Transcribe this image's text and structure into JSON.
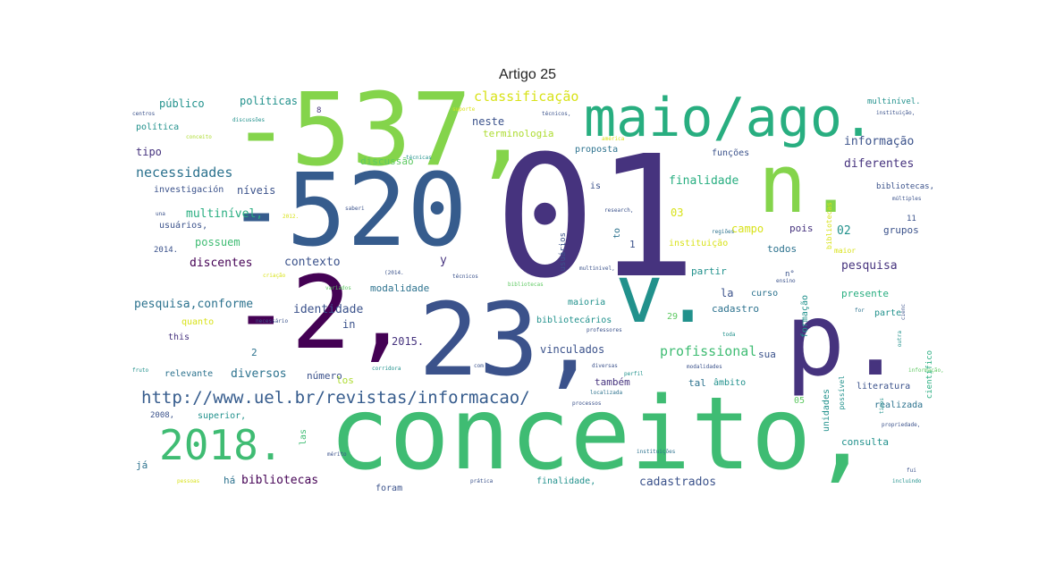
{
  "title": "Artigo 25",
  "palette": [
    "#440154",
    "#46337e",
    "#3b528b",
    "#365c8d",
    "#2c728e",
    "#21918c",
    "#1f9e89",
    "#28ae80",
    "#3fbc73",
    "#5ec962",
    "#84d44b",
    "#addc30",
    "#d8e219",
    "#fde725"
  ],
  "words": [
    {
      "text": "01",
      "color": "#46337e"
    },
    {
      "text": "conceito,",
      "color": "#3fbc73"
    },
    {
      "text": "-537,",
      "color": "#84d44b"
    },
    {
      "text": "-520",
      "color": "#365c8d"
    },
    {
      "text": "23,",
      "color": "#3b528b"
    },
    {
      "text": "maio/ago.",
      "color": "#28ae80"
    },
    {
      "text": "-2,",
      "color": "#440154"
    },
    {
      "text": "n.",
      "color": "#84d44b"
    },
    {
      "text": "v.",
      "color": "#21918c"
    },
    {
      "text": "p.",
      "color": "#46337e"
    },
    {
      "text": "2018.",
      "color": "#3fbc73"
    },
    {
      "text": "http://www.uel.br/revistas/informacao/",
      "color": "#365c8d"
    },
    {
      "text": "classificação",
      "color": "#d8e219"
    },
    {
      "text": "profissional",
      "color": "#3fbc73"
    },
    {
      "text": "necessidades",
      "color": "#2c728e"
    },
    {
      "text": "informação",
      "color": "#3b528b"
    },
    {
      "text": "diferentes",
      "color": "#46337e"
    },
    {
      "text": "finalidade",
      "color": "#28ae80"
    },
    {
      "text": "multinível,",
      "color": "#28ae80"
    },
    {
      "text": "pesquisa,conforme",
      "color": "#2c728e"
    },
    {
      "text": "identidade",
      "color": "#3b528b"
    },
    {
      "text": "discentes",
      "color": "#440154"
    },
    {
      "text": "diversos",
      "color": "#2c728e"
    },
    {
      "text": "bibliotecas",
      "color": "#440154"
    },
    {
      "text": "cadastrados",
      "color": "#3b528b"
    },
    {
      "text": "pesquisa",
      "color": "#46337e"
    },
    {
      "text": "contexto",
      "color": "#3b528b"
    },
    {
      "text": "modalidade",
      "color": "#2c728e"
    },
    {
      "text": "vinculados",
      "color": "#3b528b"
    },
    {
      "text": "políticas",
      "color": "#21918c"
    },
    {
      "text": "público",
      "color": "#21918c"
    },
    {
      "text": "neste",
      "color": "#3b528b"
    },
    {
      "text": "tipo",
      "color": "#46337e"
    },
    {
      "text": "níveis",
      "color": "#3b528b"
    },
    {
      "text": "possuem",
      "color": "#3fbc73"
    },
    {
      "text": "2015.",
      "color": "#46337e"
    },
    {
      "text": "consulta",
      "color": "#21918c"
    },
    {
      "text": "terminologia",
      "color": "#addc30"
    },
    {
      "text": "discussão",
      "color": "#5ec962"
    },
    {
      "text": "campo",
      "color": "#d8e219"
    },
    {
      "text": "02",
      "color": "#21918c"
    },
    {
      "text": "grupos",
      "color": "#3b528b"
    },
    {
      "text": "pois",
      "color": "#46337e"
    },
    {
      "text": "todos",
      "color": "#2c728e"
    },
    {
      "text": "partir",
      "color": "#21918c"
    },
    {
      "text": "presente",
      "color": "#28ae80"
    },
    {
      "text": "parte",
      "color": "#21918c"
    },
    {
      "text": "literatura",
      "color": "#3b528b"
    },
    {
      "text": "realizada",
      "color": "#2c728e"
    },
    {
      "text": "relevante",
      "color": "#2c728e"
    },
    {
      "text": "número",
      "color": "#3b528b"
    },
    {
      "text": "também",
      "color": "#46337e"
    },
    {
      "text": "tal",
      "color": "#2c728e"
    },
    {
      "text": "âmbito",
      "color": "#21918c"
    },
    {
      "text": "maioria",
      "color": "#21918c"
    },
    {
      "text": "cadastro",
      "color": "#2c728e"
    },
    {
      "text": "sua",
      "color": "#3b528b"
    },
    {
      "text": "la",
      "color": "#3b528b"
    },
    {
      "text": "in",
      "color": "#3b528b"
    },
    {
      "text": "this",
      "color": "#46337e"
    },
    {
      "text": "los",
      "color": "#addc30"
    },
    {
      "text": "há",
      "color": "#2c728e"
    },
    {
      "text": "já",
      "color": "#2c728e"
    },
    {
      "text": "foram",
      "color": "#3b528b"
    },
    {
      "text": "y",
      "color": "#46337e"
    },
    {
      "text": "quanto",
      "color": "#d8e219"
    },
    {
      "text": "proposta",
      "color": "#2c728e"
    },
    {
      "text": "funções",
      "color": "#3b528b"
    },
    {
      "text": "curso",
      "color": "#2c728e"
    },
    {
      "text": "formação",
      "color": "#21918c"
    },
    {
      "text": "unidades",
      "color": "#21918c"
    },
    {
      "text": "científico",
      "color": "#28ae80"
    },
    {
      "text": "bibliotecas,",
      "color": "#3b528b"
    },
    {
      "text": "bibliotecários",
      "color": "#21918c"
    },
    {
      "text": "instituição",
      "color": "#d8e219"
    },
    {
      "text": "investigación",
      "color": "#3b528b"
    },
    {
      "text": "usuários,",
      "color": "#3b528b"
    },
    {
      "text": "usuários",
      "color": "#3b528b"
    },
    {
      "text": "política",
      "color": "#21918c"
    },
    {
      "text": "multinível.",
      "color": "#21918c"
    },
    {
      "text": "finalidade,",
      "color": "#21918c"
    },
    {
      "text": "superior,",
      "color": "#21918c"
    },
    {
      "text": "2014.",
      "color": "#3b528b"
    },
    {
      "text": "2008,",
      "color": "#3b528b"
    },
    {
      "text": "03",
      "color": "#d8e219"
    },
    {
      "text": "05",
      "color": "#5ec962"
    },
    {
      "text": "29",
      "color": "#5ec962"
    },
    {
      "text": "las",
      "color": "#3fbc73"
    },
    {
      "text": "possível",
      "color": "#21918c"
    },
    {
      "text": "maior",
      "color": "#d8e219"
    },
    {
      "text": "bibliotecas",
      "color": "#d8e219"
    },
    {
      "text": "n°",
      "color": "#3b528b"
    },
    {
      "text": "to",
      "color": "#2c728e"
    },
    {
      "text": "is",
      "color": "#3b528b"
    },
    {
      "text": "2",
      "color": "#2c728e"
    },
    {
      "text": "1",
      "color": "#3b528b"
    },
    {
      "text": "11",
      "color": "#3b528b"
    },
    {
      "text": "8",
      "color": "#46337e"
    },
    {
      "text": "centros",
      "color": "#3b528b"
    },
    {
      "text": "discussões",
      "color": "#21918c"
    },
    {
      "text": "conceito",
      "color": "#addc30"
    },
    {
      "text": "suporte",
      "color": "#d8e219"
    },
    {
      "text": "técnicos,",
      "color": "#3b528b"
    },
    {
      "text": "instituição,",
      "color": "#3b528b"
    },
    {
      "text": "américa",
      "color": "#d8e219"
    },
    {
      "text": "técnicas",
      "color": "#21918c"
    },
    {
      "text": "research,",
      "color": "#3b528b"
    },
    {
      "text": "saberi",
      "color": "#3b528b"
    },
    {
      "text": "regiões",
      "color": "#2c728e"
    },
    {
      "text": "múltiples",
      "color": "#3b528b"
    },
    {
      "text": "técnicos",
      "color": "#3b528b"
    },
    {
      "text": "criação",
      "color": "#d8e219"
    },
    {
      "text": "variados",
      "color": "#5ec962"
    },
    {
      "text": "necessário",
      "color": "#3b528b"
    },
    {
      "text": "corridora",
      "color": "#21918c"
    },
    {
      "text": "diversas",
      "color": "#3b528b"
    },
    {
      "text": "modalidades",
      "color": "#3b528b"
    },
    {
      "text": "localizada",
      "color": "#2c728e"
    },
    {
      "text": "processos",
      "color": "#3b528b"
    },
    {
      "text": "professores",
      "color": "#3b528b"
    },
    {
      "text": "perfil",
      "color": "#21918c"
    },
    {
      "text": "informação,",
      "color": "#5ec962"
    },
    {
      "text": "tipos",
      "color": "#21918c"
    },
    {
      "text": "propriedade,",
      "color": "#3b528b"
    },
    {
      "text": "instituições",
      "color": "#2c728e"
    },
    {
      "text": "mérito",
      "color": "#3b528b"
    },
    {
      "text": "prática",
      "color": "#3b528b"
    },
    {
      "text": "pessoas",
      "color": "#d8e219"
    },
    {
      "text": "incluindo",
      "color": "#21918c"
    },
    {
      "text": "fui",
      "color": "#3b528b"
    },
    {
      "text": "fruto",
      "color": "#21918c"
    },
    {
      "text": "com",
      "color": "#3b528b"
    },
    {
      "text": "toda",
      "color": "#21918c"
    },
    {
      "text": "outra",
      "color": "#21918c"
    },
    {
      "text": "for",
      "color": "#2c728e"
    },
    {
      "text": "cienc",
      "color": "#3b528b"
    },
    {
      "text": "ensino",
      "color": "#3b528b"
    },
    {
      "text": "2012.",
      "color": "#d8e219"
    },
    {
      "text": "(2014.",
      "color": "#3b528b"
    },
    {
      "text": "una",
      "color": "#3b528b"
    },
    {
      "text": "multinivel,",
      "color": "#3b528b"
    },
    {
      "text": "bibliotecas",
      "color": "#5ec962"
    }
  ]
}
